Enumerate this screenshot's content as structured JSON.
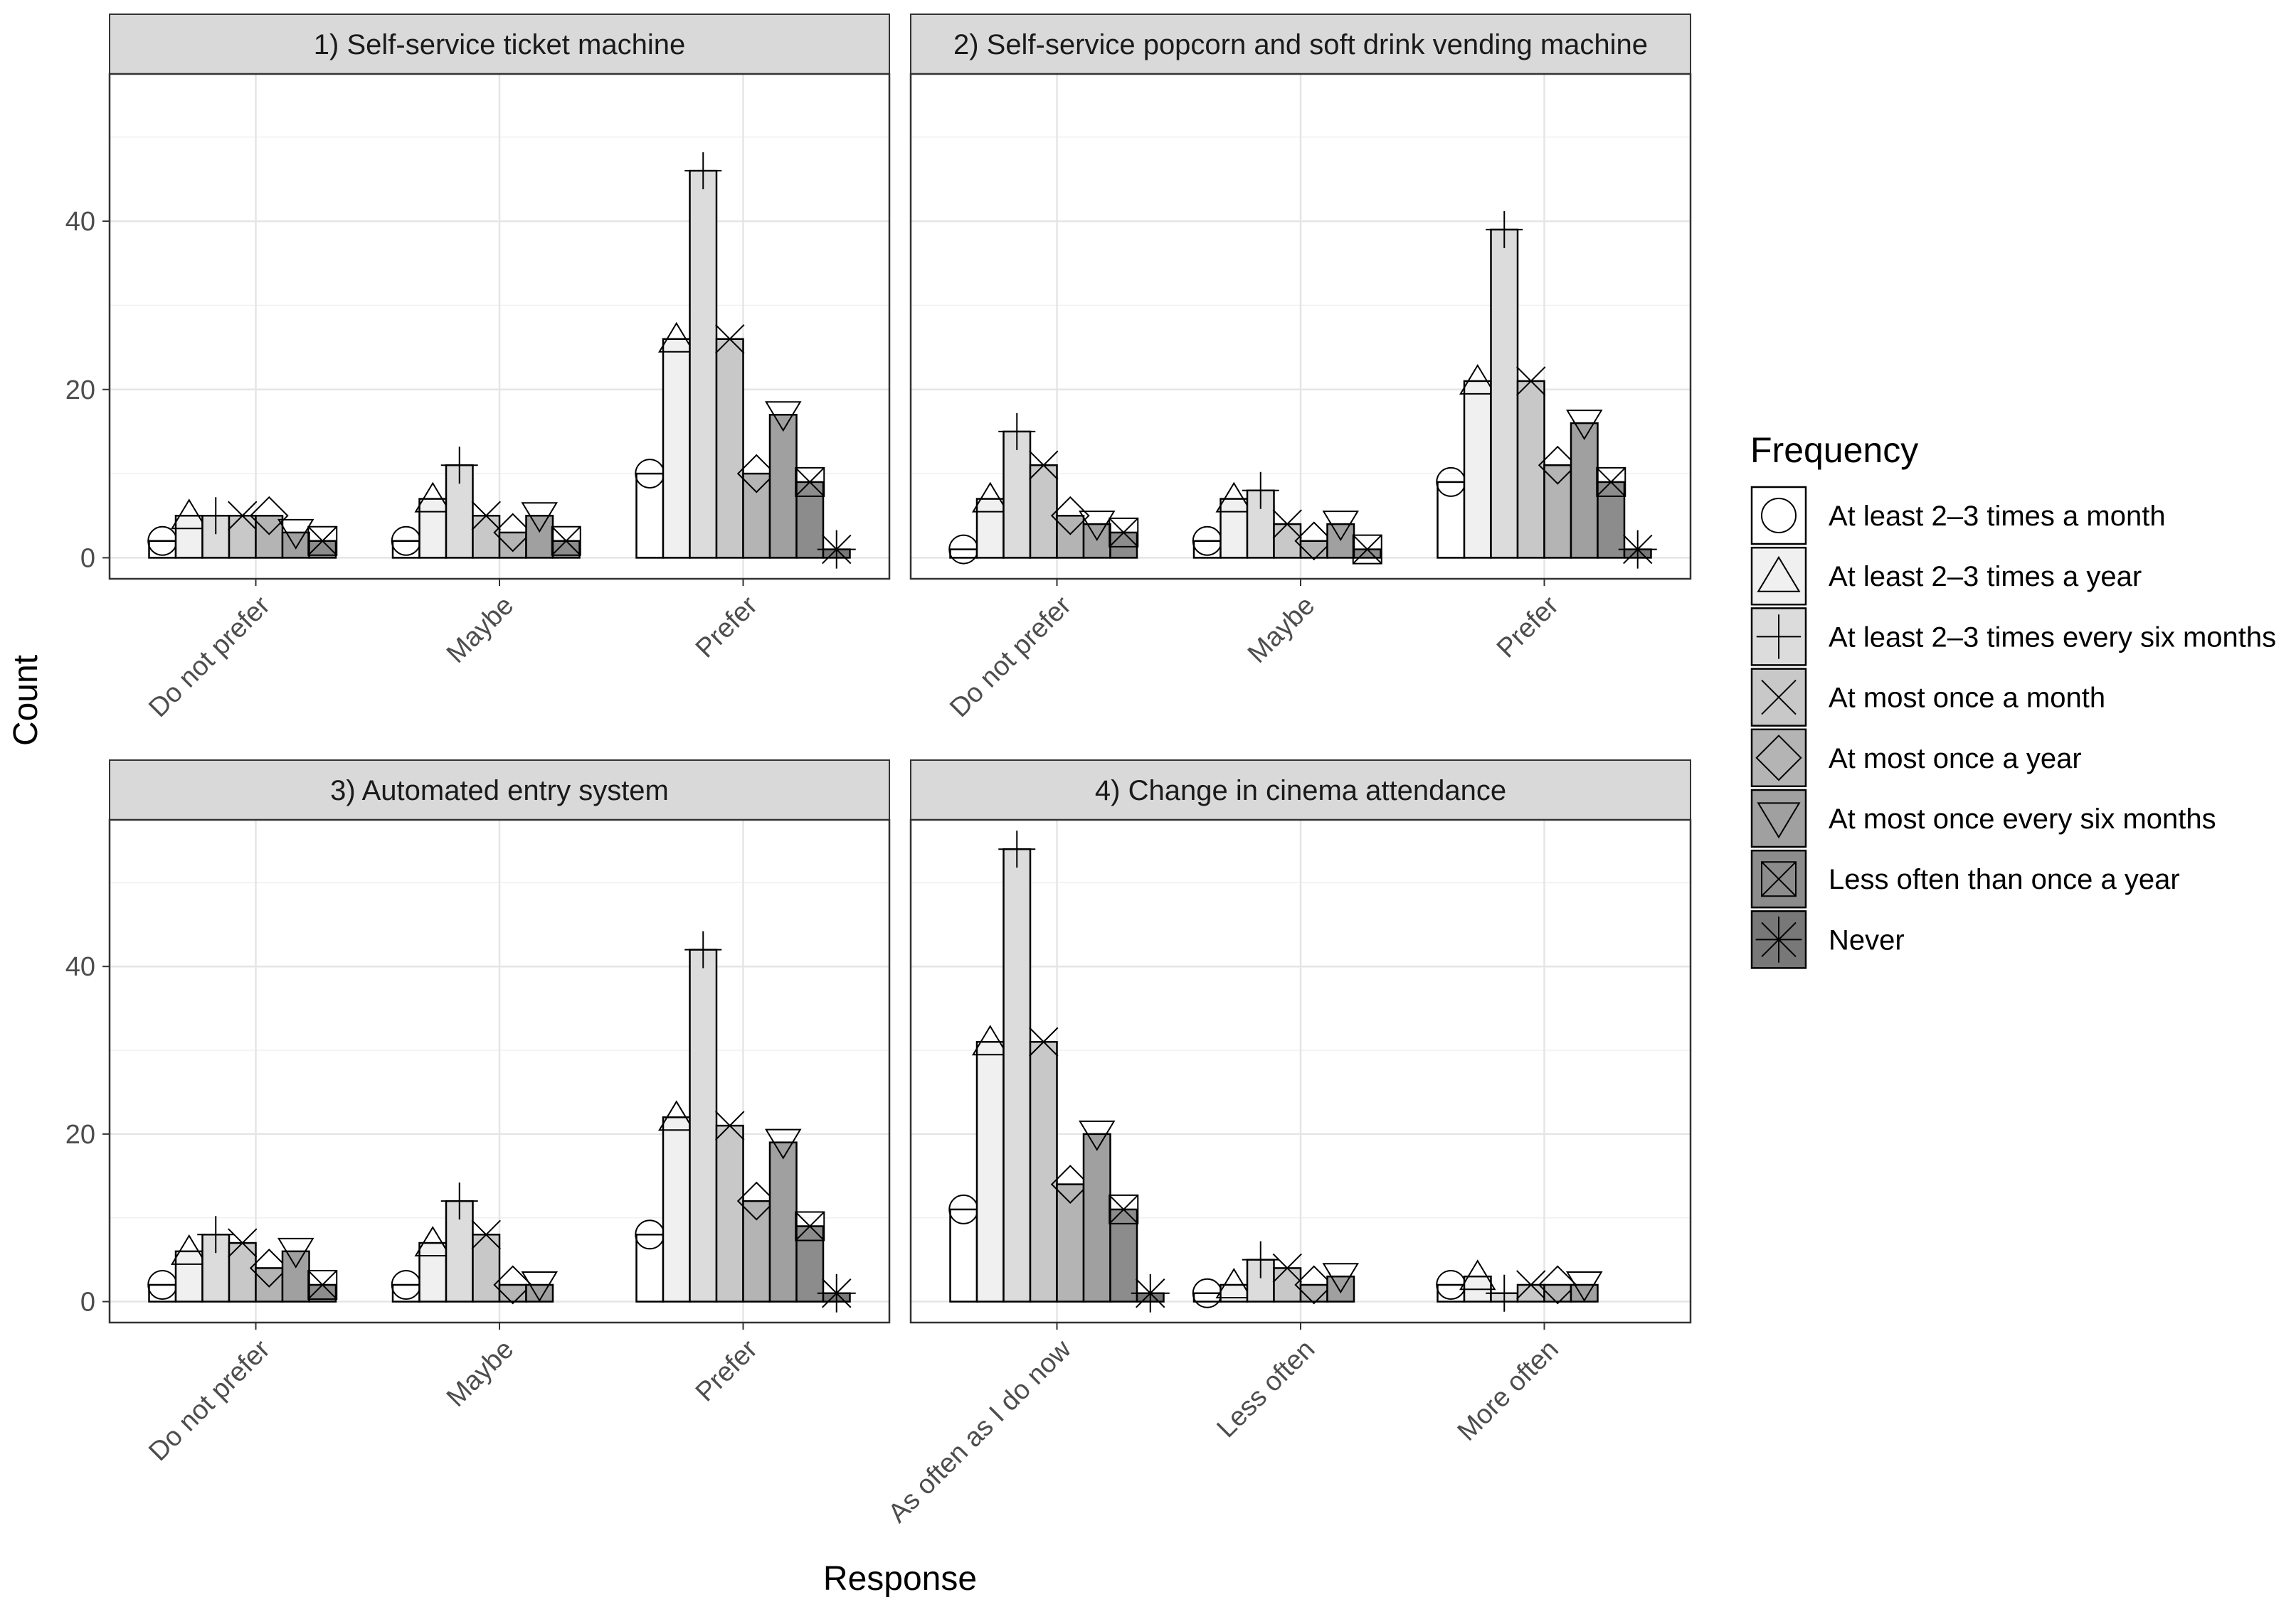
{
  "chart_data": {
    "type": "bar",
    "ylabel": "Count",
    "xlabel": "Response",
    "ylim": [
      -2.5,
      57.5
    ],
    "yticks": [
      0,
      20,
      40
    ],
    "grid": true,
    "legend_placement": "right",
    "legend": {
      "title": "Frequency",
      "entries": [
        {
          "name": "At least 2–3 times a month",
          "fill": "#ffffff",
          "shape": "circle"
        },
        {
          "name": "At least 2–3 times a year",
          "fill": "#f0f0f0",
          "shape": "triangle-up"
        },
        {
          "name": "At least 2–3 times every six months",
          "fill": "#dcdcdc",
          "shape": "plus"
        },
        {
          "name": "At most once a month",
          "fill": "#c8c8c8",
          "shape": "cross"
        },
        {
          "name": "At most once a year",
          "fill": "#b4b4b4",
          "shape": "diamond"
        },
        {
          "name": "At most once every six months",
          "fill": "#a0a0a0",
          "shape": "triangle-down"
        },
        {
          "name": "Less often than once a year",
          "fill": "#8c8c8c",
          "shape": "square-cross"
        },
        {
          "name": "Never",
          "fill": "#787878",
          "shape": "asterisk"
        }
      ]
    },
    "panels": [
      {
        "title": "1) Self-service ticket machine",
        "categories": [
          "Do not prefer",
          "Maybe",
          "Prefer"
        ],
        "values": [
          [
            2,
            5,
            5,
            5,
            5,
            3,
            2
          ],
          [
            2,
            7,
            11,
            5,
            3,
            5,
            2
          ],
          [
            10,
            26,
            46,
            26,
            10,
            17,
            9,
            1
          ]
        ]
      },
      {
        "title": "2) Self-service popcorn and soft drink vending machine",
        "categories": [
          "Do not prefer",
          "Maybe",
          "Prefer"
        ],
        "values": [
          [
            1,
            7,
            15,
            11,
            5,
            4,
            3
          ],
          [
            2,
            7,
            8,
            4,
            2,
            4,
            1
          ],
          [
            9,
            21,
            39,
            21,
            11,
            16,
            9,
            1
          ]
        ]
      },
      {
        "title": "3) Automated entry system",
        "categories": [
          "Do not prefer",
          "Maybe",
          "Prefer"
        ],
        "values": [
          [
            2,
            6,
            8,
            7,
            4,
            6,
            2
          ],
          [
            2,
            7,
            12,
            8,
            2,
            2
          ],
          [
            8,
            22,
            42,
            21,
            12,
            19,
            9,
            1
          ]
        ]
      },
      {
        "title": "4) Change in cinema attendance",
        "categories": [
          "As often as I do now",
          "Less often",
          "More often"
        ],
        "values": [
          [
            11,
            31,
            54,
            31,
            14,
            20,
            11,
            1
          ],
          [
            1,
            2,
            5,
            4,
            2,
            3
          ],
          [
            2,
            3,
            1,
            2,
            2,
            2
          ]
        ]
      }
    ]
  }
}
